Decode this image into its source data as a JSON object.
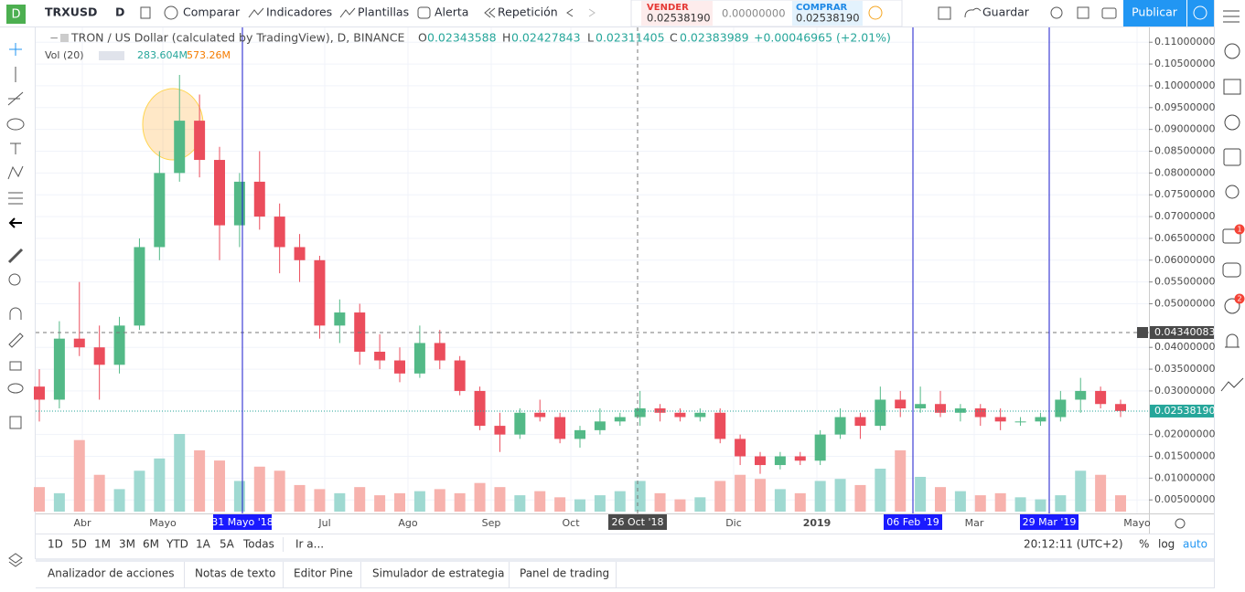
{
  "toolbar": {
    "symbol": "TRXUSD",
    "interval": "D",
    "compare": "Comparar",
    "indicators": "Indicadores",
    "templates": "Plantillas",
    "alert": "Alerta",
    "replay": "Repetición",
    "sell_label": "VENDER",
    "sell_price": "0.02538190",
    "spread": "0.00000000",
    "buy_label": "COMPRAR",
    "buy_price": "0.02538190",
    "save": "Guardar",
    "publish": "Publicar"
  },
  "legend": {
    "title": "TRON / US Dollar (calculated by TradingView), D, BINANCE",
    "o_label": "O",
    "o": "0.02343588",
    "h_label": "H",
    "h": "0.02427843",
    "l_label": "L",
    "l": "0.02311405",
    "c_label": "C",
    "c": "0.02383989",
    "change": "+0.00046965 (+2.01%)",
    "vol_label": "Vol (20)",
    "vol1": "283.604M",
    "vol2": "573.26M"
  },
  "chart_data": {
    "type": "candlestick",
    "grid": true,
    "up_color": "#53b987",
    "down_color": "#eb4d5c",
    "ylim": [
      0.0019,
      0.1134
    ],
    "yticks": [
      {
        "value": 0.11,
        "label": "0.11000000"
      },
      {
        "value": 0.105,
        "label": "0.10500000"
      },
      {
        "value": 0.1,
        "label": "0.10000000"
      },
      {
        "value": 0.095,
        "label": "0.09500000"
      },
      {
        "value": 0.09,
        "label": "0.09000000"
      },
      {
        "value": 0.085,
        "label": "0.08500000"
      },
      {
        "value": 0.08,
        "label": "0.08000000"
      },
      {
        "value": 0.075,
        "label": "0.07500000"
      },
      {
        "value": 0.07,
        "label": "0.07000000"
      },
      {
        "value": 0.065,
        "label": "0.06500000"
      },
      {
        "value": 0.06,
        "label": "0.06000000"
      },
      {
        "value": 0.055,
        "label": "0.05500000"
      },
      {
        "value": 0.05,
        "label": "0.05000000"
      },
      {
        "value": 0.04,
        "label": "0.04000000"
      },
      {
        "value": 0.035,
        "label": "0.03500000"
      },
      {
        "value": 0.03,
        "label": "0.03000000"
      },
      {
        "value": 0.02,
        "label": "0.02000000"
      },
      {
        "value": 0.015,
        "label": "0.01500000"
      },
      {
        "value": 0.01,
        "label": "0.01000000"
      },
      {
        "value": 0.005,
        "label": "0.00500000"
      }
    ],
    "xticks": [
      "Abr",
      "Mayo",
      "Jul",
      "Ago",
      "Sep",
      "Oct",
      "Dic",
      "2019",
      "Mar",
      "Mayo"
    ],
    "ohlc": [
      [
        0.031,
        0.035,
        0.023,
        0.028
      ],
      [
        0.028,
        0.046,
        0.026,
        0.042
      ],
      [
        0.042,
        0.055,
        0.038,
        0.04
      ],
      [
        0.04,
        0.045,
        0.028,
        0.036
      ],
      [
        0.036,
        0.047,
        0.034,
        0.045
      ],
      [
        0.045,
        0.065,
        0.044,
        0.063
      ],
      [
        0.063,
        0.085,
        0.06,
        0.08
      ],
      [
        0.08,
        0.1025,
        0.078,
        0.092
      ],
      [
        0.092,
        0.098,
        0.079,
        0.083
      ],
      [
        0.083,
        0.086,
        0.06,
        0.068
      ],
      [
        0.068,
        0.08,
        0.063,
        0.078
      ],
      [
        0.078,
        0.085,
        0.067,
        0.07
      ],
      [
        0.07,
        0.073,
        0.057,
        0.063
      ],
      [
        0.063,
        0.066,
        0.055,
        0.06
      ],
      [
        0.06,
        0.061,
        0.042,
        0.045
      ],
      [
        0.045,
        0.051,
        0.041,
        0.048
      ],
      [
        0.048,
        0.05,
        0.036,
        0.039
      ],
      [
        0.039,
        0.043,
        0.035,
        0.037
      ],
      [
        0.037,
        0.04,
        0.032,
        0.034
      ],
      [
        0.034,
        0.045,
        0.033,
        0.041
      ],
      [
        0.041,
        0.044,
        0.035,
        0.037
      ],
      [
        0.037,
        0.038,
        0.029,
        0.03
      ],
      [
        0.03,
        0.031,
        0.021,
        0.022
      ],
      [
        0.022,
        0.025,
        0.016,
        0.02
      ],
      [
        0.02,
        0.026,
        0.019,
        0.025
      ],
      [
        0.025,
        0.028,
        0.023,
        0.024
      ],
      [
        0.024,
        0.025,
        0.018,
        0.019
      ],
      [
        0.019,
        0.022,
        0.017,
        0.021
      ],
      [
        0.021,
        0.026,
        0.02,
        0.023
      ],
      [
        0.023,
        0.025,
        0.022,
        0.024
      ],
      [
        0.024,
        0.03,
        0.022,
        0.026
      ],
      [
        0.026,
        0.027,
        0.023,
        0.025
      ],
      [
        0.025,
        0.026,
        0.023,
        0.024
      ],
      [
        0.024,
        0.026,
        0.023,
        0.025
      ],
      [
        0.025,
        0.026,
        0.018,
        0.019
      ],
      [
        0.019,
        0.02,
        0.013,
        0.015
      ],
      [
        0.015,
        0.016,
        0.011,
        0.013
      ],
      [
        0.013,
        0.016,
        0.012,
        0.015
      ],
      [
        0.015,
        0.016,
        0.013,
        0.014
      ],
      [
        0.014,
        0.021,
        0.013,
        0.02
      ],
      [
        0.02,
        0.026,
        0.019,
        0.024
      ],
      [
        0.024,
        0.025,
        0.019,
        0.022
      ],
      [
        0.022,
        0.031,
        0.021,
        0.028
      ],
      [
        0.028,
        0.03,
        0.024,
        0.026
      ],
      [
        0.026,
        0.031,
        0.025,
        0.027
      ],
      [
        0.027,
        0.03,
        0.024,
        0.025
      ],
      [
        0.025,
        0.027,
        0.023,
        0.026
      ],
      [
        0.026,
        0.027,
        0.022,
        0.024
      ],
      [
        0.024,
        0.026,
        0.021,
        0.023
      ],
      [
        0.023,
        0.024,
        0.022,
        0.023
      ],
      [
        0.023,
        0.025,
        0.022,
        0.024
      ],
      [
        0.024,
        0.03,
        0.023,
        0.028
      ],
      [
        0.028,
        0.033,
        0.025,
        0.03
      ],
      [
        0.03,
        0.031,
        0.026,
        0.027
      ],
      [
        0.027,
        0.028,
        0.024,
        0.0254
      ]
    ],
    "volume": [
      120,
      90,
      350,
      180,
      110,
      200,
      260,
      380,
      300,
      250,
      150,
      220,
      200,
      130,
      110,
      90,
      120,
      80,
      90,
      100,
      110,
      90,
      140,
      120,
      80,
      100,
      70,
      60,
      80,
      100,
      150,
      90,
      60,
      70,
      150,
      180,
      160,
      110,
      90,
      150,
      160,
      130,
      210,
      300,
      170,
      120,
      100,
      80,
      90,
      70,
      60,
      80,
      200,
      180,
      80
    ],
    "last_price": {
      "value": 0.0253819,
      "label": "0.02538190"
    },
    "crosshair_price": {
      "value": 0.04340083,
      "label": "0.04340083"
    },
    "date_markers": [
      "31 Mayo '18",
      "26 Oct '18",
      "06 Feb '19",
      "29 Mar '19"
    ]
  },
  "bottom": {
    "ranges": [
      "1D",
      "5D",
      "1M",
      "3M",
      "6M",
      "YTD",
      "1A",
      "5A",
      "Todas"
    ],
    "goto": "Ir a...",
    "time": "20:12:11 (UTC+2)",
    "percent": "%",
    "log": "log",
    "auto": "auto"
  },
  "tabs": [
    "Analizador de acciones",
    "Notas de texto",
    "Editor Pine",
    "Simulador de estrategia",
    "Panel de trading"
  ],
  "badges": [
    "1",
    "2"
  ]
}
